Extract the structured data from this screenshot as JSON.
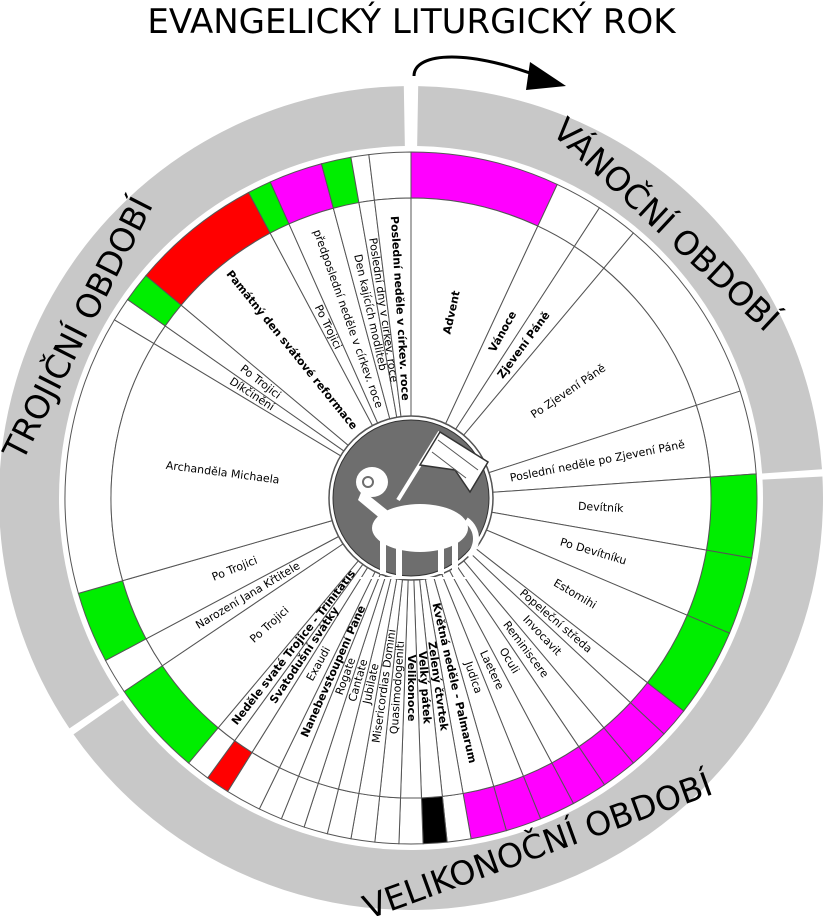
{
  "title": "EVANGELICKÝ LITURGICKÝ ROK",
  "seasons": [
    {
      "id": "vanocni",
      "label": "VÁNOČNÍ OBDOBÍ"
    },
    {
      "id": "velikonocni",
      "label": "VELIKONOČNÍ OBDOBÍ"
    },
    {
      "id": "trojicni",
      "label": "TROJIČNÍ OBDOBÍ"
    }
  ],
  "colors": {
    "purple": "#ff00ff",
    "green": "#00ee00",
    "red": "#ff0000",
    "black": "#000000",
    "white": "#ffffff",
    "season_band": "#c8c8c8",
    "center": "#6e6e6e"
  },
  "center_icon": "lamb-of-god-icon",
  "segments": [
    {
      "label": "Advent",
      "bold": true,
      "color": "purple"
    },
    {
      "label": "Vánoce",
      "bold": true,
      "color": "white"
    },
    {
      "label": "Zjevení Páně",
      "bold": true,
      "color": "white"
    },
    {
      "label": "Po Zjevení Páně",
      "bold": false,
      "color": "white"
    },
    {
      "label": "Poslední neděle po Zjevení Páně",
      "bold": false,
      "color": "white"
    },
    {
      "label": "Devítník",
      "bold": false,
      "color": "green"
    },
    {
      "label": "Po Devítníku",
      "bold": false,
      "color": "green"
    },
    {
      "label": "Estomihi",
      "bold": false,
      "color": "green"
    },
    {
      "label": "Popeleční středa",
      "bold": false,
      "color": "purple"
    },
    {
      "label": "Invocavit",
      "bold": false,
      "color": "purple"
    },
    {
      "label": "Reminiscere",
      "bold": false,
      "color": "purple"
    },
    {
      "label": "Oculi",
      "bold": false,
      "color": "purple"
    },
    {
      "label": "Laetere",
      "bold": false,
      "color": "purple"
    },
    {
      "label": "Judica",
      "bold": false,
      "color": "purple"
    },
    {
      "label": "Květná neděle - Palmarum",
      "bold": true,
      "color": "purple"
    },
    {
      "label": "Zelený čtvrtek",
      "bold": true,
      "color": "white"
    },
    {
      "label": "Velký pátek",
      "bold": true,
      "color": "black"
    },
    {
      "label": "Velikonoce",
      "bold": true,
      "color": "white"
    },
    {
      "label": "Quasimodogeniti",
      "bold": false,
      "color": "white"
    },
    {
      "label": "Misericordias Domini",
      "bold": false,
      "color": "white"
    },
    {
      "label": "Jubilate",
      "bold": false,
      "color": "white"
    },
    {
      "label": "Cantate",
      "bold": false,
      "color": "white"
    },
    {
      "label": "Rogate",
      "bold": false,
      "color": "white"
    },
    {
      "label": "Nanebevstoupení Páně",
      "bold": true,
      "color": "white"
    },
    {
      "label": "Exaudi",
      "bold": false,
      "color": "white"
    },
    {
      "label": "Svatodušní svátky",
      "bold": true,
      "color": "red"
    },
    {
      "label": "Neděle svaté Trojice - Trinitatis",
      "bold": true,
      "color": "white"
    },
    {
      "label": "Po Trojici",
      "bold": false,
      "color": "green"
    },
    {
      "label": "Narození Jana Křtitele",
      "bold": false,
      "color": "white"
    },
    {
      "label": "Po Trojici",
      "bold": false,
      "color": "green"
    },
    {
      "label": "Archanděla Michaela",
      "bold": false,
      "color": "white"
    },
    {
      "label": "Díkčinění",
      "bold": false,
      "color": "white"
    },
    {
      "label": "Po Trojici",
      "bold": false,
      "color": "green"
    },
    {
      "label": "Památný den svátové reformace",
      "bold": true,
      "color": "red"
    },
    {
      "label": "Po Trojici",
      "bold": false,
      "color": "green"
    },
    {
      "label": "předposlední neděle v církev. roce",
      "bold": false,
      "color": "purple"
    },
    {
      "label": "Den kajících modliteb",
      "bold": false,
      "color": "green"
    },
    {
      "label": "Poslední dny v církev. roce",
      "bold": false,
      "color": "white"
    },
    {
      "label": "Poslední neděle v církev. roce",
      "bold": true,
      "color": "white"
    }
  ]
}
